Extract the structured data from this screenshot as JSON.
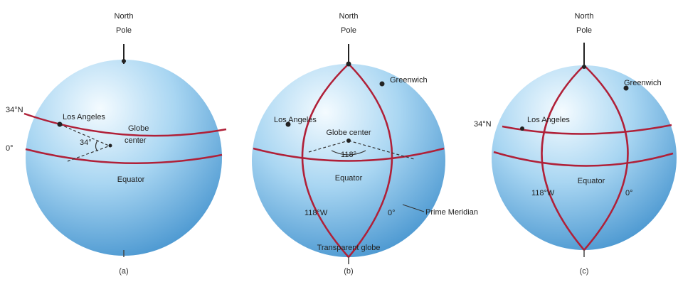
{
  "colors": {
    "line": "#b02038",
    "globe_light": "#f4fbff",
    "globe_mid": "#a9d6f2",
    "globe_dark": "#3e8fcc",
    "text": "#222222"
  },
  "panel_a": {
    "north_pole": [
      "North",
      "Pole"
    ],
    "lat_label": "34°N",
    "eq_label": "0°",
    "city": "Los Angeles",
    "angle": "34°",
    "globe_center": [
      "Globe",
      "center"
    ],
    "equator": "Equator",
    "caption": "(a)"
  },
  "panel_b": {
    "north_pole": [
      "North",
      "Pole"
    ],
    "greenwich": "Greenwich",
    "city": "Los Angeles",
    "globe_center": "Globe center",
    "angle": "118°",
    "equator": "Equator",
    "lon_w": "118°W",
    "lon_0": "0°",
    "prime_meridian": "Prime Meridian",
    "transparent": "Transparent globe",
    "caption": "(b)"
  },
  "panel_c": {
    "north_pole": [
      "North",
      "Pole"
    ],
    "greenwich": "Greenwich",
    "lat_label": "34°N",
    "city": "Los Angeles",
    "equator": "Equator",
    "lon_w": "118°W",
    "lon_0": "0°",
    "caption": "(c)"
  }
}
